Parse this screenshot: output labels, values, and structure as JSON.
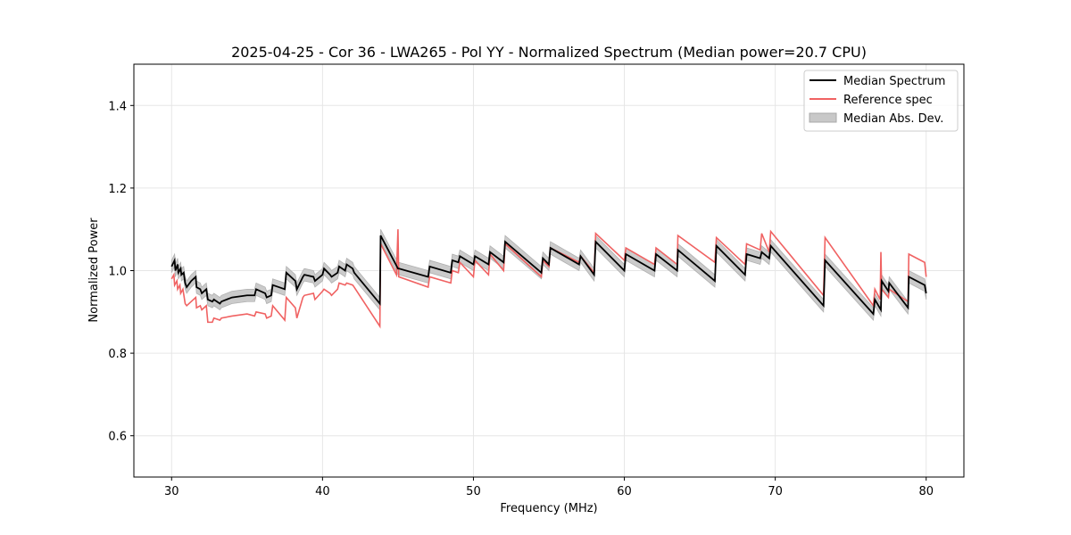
{
  "chart_data": {
    "type": "line",
    "title": "2025-04-25 - Cor 36 - LWA265 - Pol YY - Normalized Spectrum (Median power=20.7 CPU)",
    "xlabel": "Frequency (MHz)",
    "ylabel": "Normalized Power",
    "xlim": [
      27.5,
      82.5
    ],
    "ylim": [
      0.5,
      1.5
    ],
    "xticks": [
      30,
      40,
      50,
      60,
      70,
      80
    ],
    "yticks": [
      0.6,
      0.8,
      1.0,
      1.2,
      1.4
    ],
    "xtick_labels": [
      "30",
      "40",
      "50",
      "60",
      "70",
      "80"
    ],
    "ytick_labels": [
      "0.6",
      "0.8",
      "1.0",
      "1.2",
      "1.4"
    ],
    "grid": true,
    "legend_position": "top-right",
    "mad_halfwidth": 0.015,
    "series": [
      {
        "name": "Median Spectrum",
        "color": "#000000",
        "x": [
          30.0,
          30.2,
          30.25,
          30.4,
          30.45,
          30.6,
          30.65,
          30.8,
          30.9,
          31.0,
          31.3,
          31.6,
          31.65,
          31.9,
          32.0,
          32.3,
          32.4,
          32.7,
          32.8,
          33.2,
          33.3,
          34.0,
          35.0,
          35.5,
          35.6,
          36.2,
          36.3,
          36.6,
          36.7,
          37.5,
          37.6,
          38.2,
          38.3,
          38.7,
          38.8,
          39.4,
          39.5,
          40.0,
          40.1,
          40.5,
          40.6,
          41.0,
          41.1,
          41.5,
          41.6,
          42.0,
          42.1,
          43.8,
          43.85,
          45.0,
          45.05,
          47.0,
          47.1,
          48.5,
          48.6,
          49.0,
          49.1,
          50.0,
          50.1,
          51.0,
          51.1,
          52.0,
          52.1,
          54.5,
          54.6,
          55.0,
          55.1,
          57.0,
          57.1,
          58.0,
          58.1,
          60.0,
          60.1,
          62.0,
          62.1,
          63.5,
          63.55,
          66.0,
          66.1,
          68.0,
          68.1,
          69.0,
          69.1,
          69.6,
          69.7,
          73.2,
          73.3,
          76.5,
          76.6,
          77.0,
          77.05,
          77.5,
          77.55,
          78.8,
          78.85,
          79.9,
          80.0
        ],
        "y": [
          1.01,
          1.025,
          1.0,
          1.015,
          0.995,
          1.005,
          0.99,
          0.995,
          0.97,
          0.96,
          0.975,
          0.985,
          0.96,
          0.955,
          0.945,
          0.955,
          0.93,
          0.925,
          0.93,
          0.92,
          0.925,
          0.935,
          0.94,
          0.94,
          0.955,
          0.945,
          0.935,
          0.94,
          0.965,
          0.955,
          0.995,
          0.975,
          0.955,
          0.985,
          0.99,
          0.985,
          0.975,
          0.99,
          1.005,
          0.99,
          0.985,
          0.995,
          1.01,
          1.0,
          1.015,
          1.005,
          0.995,
          0.92,
          1.085,
          1.005,
          1.005,
          0.985,
          1.01,
          0.995,
          1.025,
          1.02,
          1.035,
          1.015,
          1.035,
          1.015,
          1.045,
          1.02,
          1.07,
          0.995,
          1.03,
          1.015,
          1.055,
          1.015,
          1.035,
          0.99,
          1.07,
          1.0,
          1.04,
          1.0,
          1.04,
          1.0,
          1.05,
          0.975,
          1.06,
          0.99,
          1.04,
          1.03,
          1.045,
          1.03,
          1.06,
          0.915,
          1.025,
          0.895,
          0.93,
          0.905,
          0.975,
          0.95,
          0.97,
          0.91,
          0.985,
          0.965,
          0.945
        ]
      },
      {
        "name": "Reference spec",
        "color": "#f06262",
        "x": [
          30.0,
          30.15,
          30.2,
          30.35,
          30.4,
          30.55,
          30.6,
          30.75,
          30.9,
          31.0,
          31.3,
          31.6,
          31.65,
          31.9,
          32.0,
          32.3,
          32.4,
          32.7,
          32.8,
          33.2,
          33.3,
          34.0,
          35.0,
          35.5,
          35.6,
          36.2,
          36.3,
          36.6,
          36.7,
          37.5,
          37.6,
          38.2,
          38.3,
          38.7,
          38.8,
          39.4,
          39.5,
          40.0,
          40.1,
          40.5,
          40.6,
          41.0,
          41.1,
          41.5,
          41.6,
          42.0,
          42.1,
          43.8,
          43.85,
          44.9,
          45.0,
          45.05,
          47.0,
          47.1,
          48.5,
          48.6,
          49.0,
          49.1,
          50.0,
          50.1,
          51.0,
          51.1,
          52.0,
          52.1,
          54.5,
          54.6,
          55.0,
          55.1,
          57.0,
          57.1,
          58.0,
          58.1,
          60.0,
          60.1,
          62.0,
          62.1,
          63.5,
          63.55,
          66.0,
          66.1,
          68.0,
          68.1,
          69.0,
          69.1,
          69.6,
          69.7,
          73.2,
          73.3,
          76.5,
          76.6,
          76.95,
          77.0,
          77.05,
          77.5,
          77.55,
          78.8,
          78.85,
          79.9,
          80.0
        ],
        "y": [
          0.98,
          0.99,
          0.965,
          0.975,
          0.955,
          0.965,
          0.945,
          0.955,
          0.92,
          0.915,
          0.925,
          0.935,
          0.91,
          0.915,
          0.905,
          0.915,
          0.875,
          0.875,
          0.885,
          0.88,
          0.885,
          0.89,
          0.895,
          0.89,
          0.9,
          0.895,
          0.885,
          0.89,
          0.915,
          0.88,
          0.935,
          0.91,
          0.885,
          0.935,
          0.94,
          0.945,
          0.93,
          0.95,
          0.955,
          0.945,
          0.94,
          0.955,
          0.97,
          0.965,
          0.97,
          0.965,
          0.96,
          0.865,
          1.065,
          0.99,
          1.1,
          0.985,
          0.96,
          0.985,
          0.97,
          1.0,
          0.995,
          1.02,
          0.985,
          1.025,
          0.99,
          1.04,
          1.0,
          1.065,
          0.985,
          1.025,
          1.01,
          1.055,
          1.02,
          1.035,
          0.995,
          1.09,
          1.025,
          1.055,
          1.015,
          1.055,
          1.015,
          1.085,
          1.02,
          1.08,
          1.015,
          1.065,
          1.05,
          1.09,
          1.045,
          1.095,
          0.94,
          1.08,
          0.915,
          0.955,
          0.93,
          1.045,
          0.955,
          0.935,
          0.955,
          0.925,
          1.04,
          1.02,
          0.985
        ]
      }
    ],
    "legend": [
      {
        "label": "Median Spectrum",
        "kind": "line",
        "color": "#000000"
      },
      {
        "label": "Reference spec",
        "kind": "line",
        "color": "#f06262"
      },
      {
        "label": "Median Abs. Dev.",
        "kind": "band",
        "color": "#c8c8c8"
      }
    ]
  }
}
